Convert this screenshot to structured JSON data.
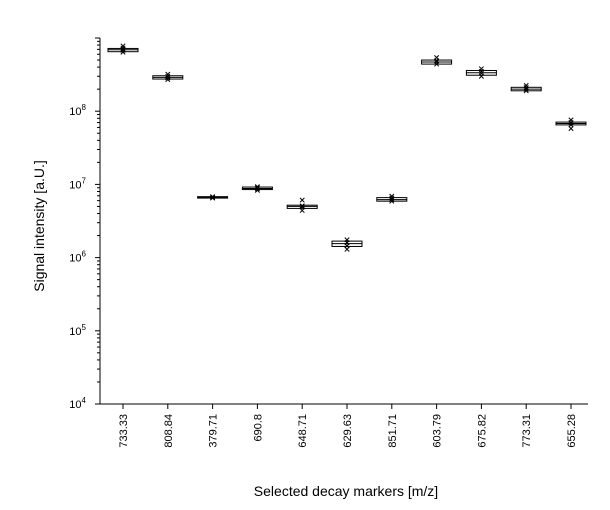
{
  "chart_data": {
    "type": "box",
    "xlabel": "Selected decay markers [m/z]",
    "ylabel": "Signal intensity [a.U.]",
    "yscale": "log",
    "ylim": [
      10000,
      1000000000
    ],
    "grid": false,
    "y_tick_labels": [
      {
        "value": 10000,
        "base": "10",
        "exp": "4"
      },
      {
        "value": 100000,
        "base": "10",
        "exp": "5"
      },
      {
        "value": 1000000,
        "base": "10",
        "exp": "6"
      },
      {
        "value": 10000000,
        "base": "10",
        "exp": "7"
      },
      {
        "value": 100000000,
        "base": "10",
        "exp": "8"
      }
    ],
    "categories": [
      "733.33",
      "808.84",
      "379.71",
      "690.8",
      "648.71",
      "629.63",
      "851.71",
      "603.79",
      "675.82",
      "773.31",
      "655.28"
    ],
    "boxes": [
      {
        "q1": 650000000,
        "median": 690000000,
        "q3": 720000000,
        "points": [
          640000000,
          680000000,
          700000000,
          730000000,
          780000000
        ]
      },
      {
        "q1": 275000000,
        "median": 290000000,
        "q3": 305000000,
        "points": [
          270000000,
          285000000,
          300000000,
          320000000
        ]
      },
      {
        "q1": 6500000,
        "median": 6650000,
        "q3": 6800000,
        "points": [
          6500000,
          6650000,
          6800000
        ]
      },
      {
        "q1": 8500000,
        "median": 8800000,
        "q3": 9200000,
        "points": [
          8300000,
          8700000,
          9000000,
          9300000
        ]
      },
      {
        "q1": 4700000,
        "median": 5000000,
        "q3": 5200000,
        "points": [
          4400000,
          4900000,
          5100000,
          6100000
        ]
      },
      {
        "q1": 1420000,
        "median": 1550000,
        "q3": 1680000,
        "points": [
          1300000,
          1450000,
          1600000,
          1750000
        ]
      },
      {
        "q1": 5900000,
        "median": 6200000,
        "q3": 6600000,
        "points": [
          5900000,
          6200000,
          6500000,
          6900000
        ]
      },
      {
        "q1": 440000000,
        "median": 470000000,
        "q3": 500000000,
        "points": [
          440000000,
          470000000,
          490000000,
          540000000
        ]
      },
      {
        "q1": 310000000,
        "median": 335000000,
        "q3": 360000000,
        "points": [
          300000000,
          330000000,
          350000000,
          380000000
        ]
      },
      {
        "q1": 190000000,
        "median": 200000000,
        "q3": 212000000,
        "points": [
          190000000,
          200000000,
          210000000,
          225000000
        ]
      },
      {
        "q1": 65000000,
        "median": 68000000,
        "q3": 71000000,
        "points": [
          58000000,
          65000000,
          70000000,
          76000000
        ]
      }
    ]
  }
}
